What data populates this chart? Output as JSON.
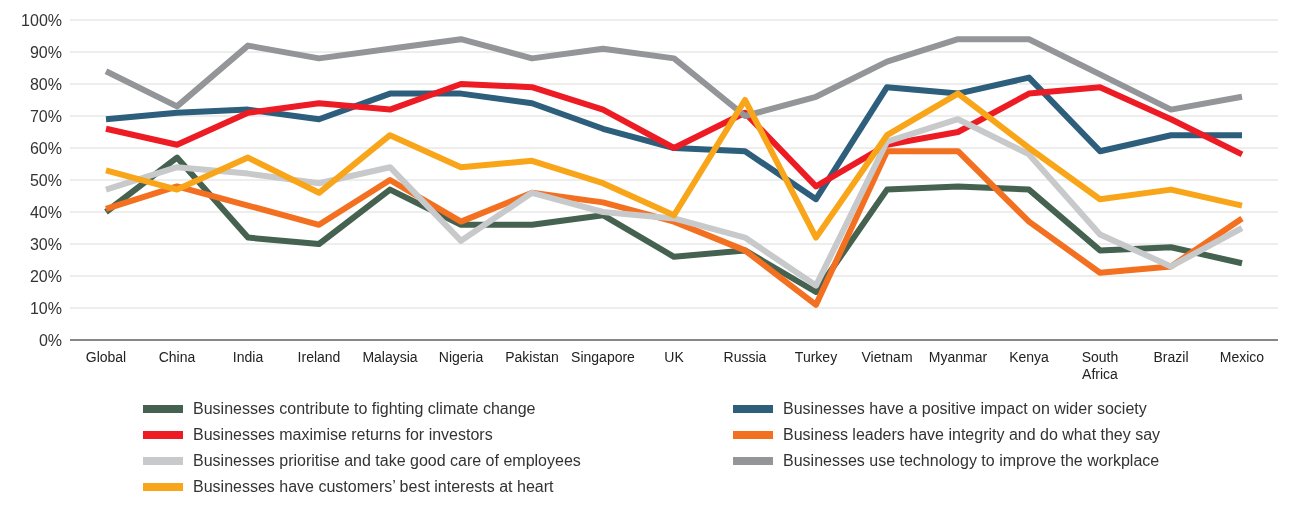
{
  "chart_data": {
    "type": "line",
    "categories": [
      "Global",
      "China",
      "India",
      "Ireland",
      "Malaysia",
      "Nigeria",
      "Pakistan",
      "Singapore",
      "UK",
      "Russia",
      "Turkey",
      "Vietnam",
      "Myanmar",
      "Kenya",
      "South Africa",
      "Brazil",
      "Mexico"
    ],
    "series": [
      {
        "name": "Businesses contribute to fighting climate change",
        "color": "#45614f",
        "values": [
          40,
          57,
          32,
          30,
          47,
          36,
          36,
          39,
          26,
          28,
          15,
          47,
          48,
          47,
          28,
          29,
          24
        ]
      },
      {
        "name": "Businesses have a positive impact on wider society",
        "color": "#2d5f7c",
        "values": [
          69,
          71,
          72,
          69,
          77,
          77,
          74,
          66,
          60,
          59,
          44,
          79,
          77,
          82,
          59,
          64,
          64
        ]
      },
      {
        "name": "Businesses maximise returns for investors",
        "color": "#ed1c24",
        "values": [
          66,
          61,
          71,
          74,
          72,
          80,
          79,
          72,
          60,
          71,
          48,
          61,
          65,
          77,
          79,
          69,
          58
        ]
      },
      {
        "name": "Business leaders have integrity and do what they say",
        "color": "#f37021",
        "values": [
          41,
          48,
          42,
          36,
          50,
          37,
          46,
          43,
          37,
          28,
          11,
          59,
          59,
          37,
          21,
          23,
          38
        ]
      },
      {
        "name": "Businesses prioritise and take good care of employees",
        "color": "#c8c9cb",
        "values": [
          47,
          54,
          52,
          49,
          54,
          31,
          46,
          40,
          38,
          32,
          17,
          62,
          69,
          58,
          33,
          23,
          35
        ]
      },
      {
        "name": "Businesses use technology to improve the workplace",
        "color": "#939598",
        "values": [
          84,
          73,
          92,
          88,
          91,
          94,
          88,
          91,
          88,
          70,
          76,
          87,
          94,
          94,
          83,
          72,
          76
        ]
      },
      {
        "name": "Businesses have customers’ best interests at heart",
        "color": "#f9a51a",
        "values": [
          53,
          47,
          57,
          46,
          64,
          54,
          56,
          49,
          39,
          75,
          32,
          64,
          77,
          60,
          44,
          47,
          42
        ]
      }
    ],
    "ylim": [
      0,
      100
    ],
    "yticks": [
      {
        "value": 0,
        "label": "0%"
      },
      {
        "value": 10,
        "label": "10%"
      },
      {
        "value": 20,
        "label": "20%"
      },
      {
        "value": 30,
        "label": "30%"
      },
      {
        "value": 40,
        "label": "40%"
      },
      {
        "value": 50,
        "label": "50%"
      },
      {
        "value": 60,
        "label": "60%"
      },
      {
        "value": 70,
        "label": "70%"
      },
      {
        "value": 80,
        "label": "80%"
      },
      {
        "value": 90,
        "label": "90%"
      },
      {
        "value": 100,
        "label": "100%"
      }
    ],
    "grid": "y",
    "legend": "bottom",
    "marker": "none",
    "line_style": "solid"
  }
}
